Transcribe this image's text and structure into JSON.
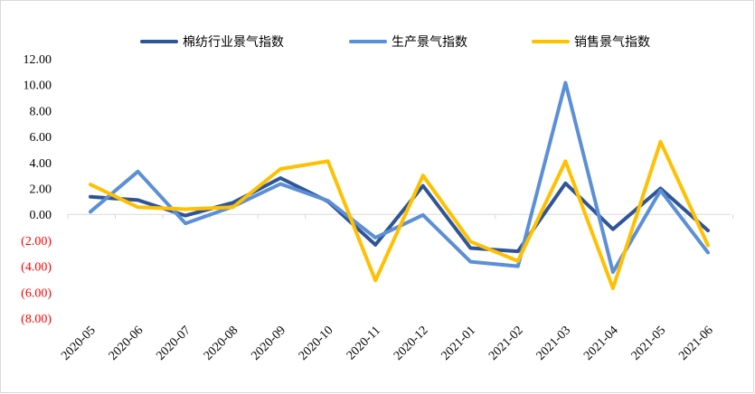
{
  "chart_data": {
    "type": "line",
    "title": "",
    "xlabel": "",
    "ylabel": "",
    "ylim": [
      -8,
      12
    ],
    "ytick_step": 2,
    "yticks": [
      "12.00",
      "10.00",
      "8.00",
      "6.00",
      "4.00",
      "2.00",
      "0.00",
      "(2.00)",
      "(4.00)",
      "(6.00)",
      "(8.00)"
    ],
    "negative_tick_color": "#FF0000",
    "positive_tick_color": "#000000",
    "grid": false,
    "legend_position": "top",
    "categories": [
      "2020-05",
      "2020-06",
      "2020-07",
      "2020-08",
      "2020-09",
      "2020-10",
      "2020-11",
      "2020-12",
      "2021-01",
      "2021-02",
      "2021-03",
      "2021-04",
      "2021-05",
      "2021-06"
    ],
    "series": [
      {
        "name": "棉纺行业景气指数",
        "color": "#2F5597",
        "values": [
          1.35,
          1.1,
          -0.1,
          0.9,
          2.8,
          1.0,
          -2.35,
          2.2,
          -2.6,
          -2.85,
          2.4,
          -1.15,
          2.0,
          -1.25
        ]
      },
      {
        "name": "生产景气指数",
        "color": "#5B8FD6",
        "values": [
          0.2,
          3.3,
          -0.7,
          0.6,
          2.35,
          1.05,
          -1.8,
          -0.05,
          -3.65,
          -4.0,
          10.15,
          -4.45,
          1.85,
          -2.95
        ]
      },
      {
        "name": "销售景气指数",
        "color": "#FFC000",
        "values": [
          2.3,
          0.55,
          0.4,
          0.55,
          3.5,
          4.1,
          -5.1,
          3.0,
          -2.1,
          -3.6,
          4.1,
          -5.7,
          5.6,
          -2.4
        ]
      }
    ]
  }
}
